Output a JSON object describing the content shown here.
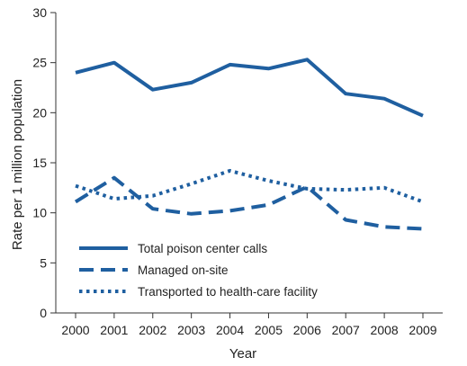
{
  "chart_data": {
    "type": "line",
    "title": "",
    "xlabel": "Year",
    "ylabel": "Rate per 1 million population",
    "x": [
      "2000",
      "2001",
      "2002",
      "2003",
      "2004",
      "2005",
      "2006",
      "2007",
      "2008",
      "2009"
    ],
    "ylim": [
      0,
      30
    ],
    "yticks": [
      0,
      5,
      10,
      15,
      20,
      25,
      30
    ],
    "grid": false,
    "legend_position": "bottom-left",
    "series": [
      {
        "name": "Total poison center calls",
        "style": "solid",
        "color": "#1f5fa0",
        "values": [
          24.0,
          25.0,
          22.3,
          23.0,
          24.8,
          24.4,
          25.3,
          21.9,
          21.4,
          19.7
        ]
      },
      {
        "name": "Managed on-site",
        "style": "dashed",
        "color": "#1f5fa0",
        "values": [
          11.1,
          13.5,
          10.4,
          9.9,
          10.2,
          10.8,
          12.6,
          9.3,
          8.6,
          8.4
        ]
      },
      {
        "name": "Transported to health-care facility",
        "style": "dotted",
        "color": "#1f5fa0",
        "values": [
          12.7,
          11.4,
          11.7,
          12.9,
          14.2,
          13.2,
          12.4,
          12.3,
          12.5,
          11.1
        ]
      }
    ]
  }
}
